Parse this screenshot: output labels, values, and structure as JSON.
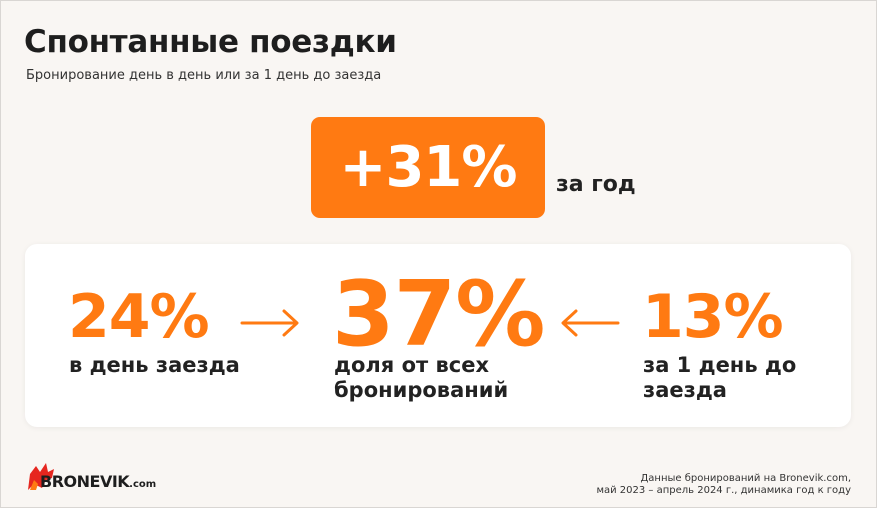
{
  "header": {
    "title": "Спонтанные поездки",
    "subtitle": "Бронирование день в день или за 1 день до заезда"
  },
  "highlight": {
    "value": "+31%",
    "suffix": "за год"
  },
  "stats": [
    {
      "value": "24%",
      "label": "в день заезда"
    },
    {
      "value": "37%",
      "label": "доля от всех бронирований"
    },
    {
      "value": "13%",
      "label": "за 1 день до заезда"
    }
  ],
  "footer": {
    "logo_main": "BRONEVIK",
    "logo_suffix": ".com",
    "note_line1": "Данные бронирований на Bronevik.com,",
    "note_line2": "май 2023 – апрель 2024 г., динамика год к году"
  },
  "colors": {
    "accent": "#ff7a12",
    "background": "#f9f6f3",
    "card": "#ffffff",
    "text": "#222222"
  },
  "icons": {
    "arrow_right": "arrow-right-icon",
    "arrow_left": "arrow-left-icon",
    "logo": "bronevik-logo"
  }
}
